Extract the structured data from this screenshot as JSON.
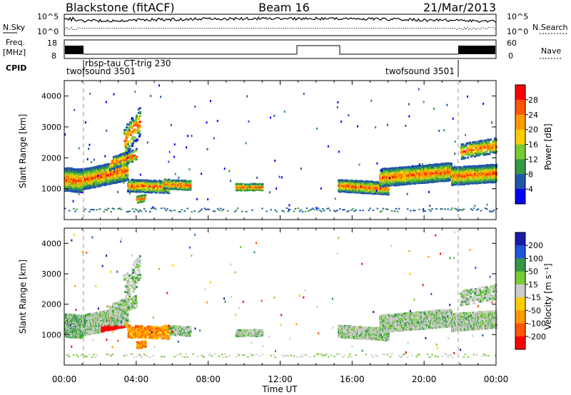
{
  "header": {
    "station": "Blackstone (fitACF)",
    "beam": "Beam 16",
    "date": "21/Mar/2013"
  },
  "status_panels": {
    "nsky_label": "N.Sky",
    "nsky_ticks": [
      "10^5",
      "10^0"
    ],
    "nsearch_label": "N.Search",
    "nsearch_ticks": [
      "10^5",
      "10^0"
    ],
    "freq_label_1": "Freq.",
    "freq_label_2": "[MHz]",
    "freq_ticks": [
      "18",
      "8"
    ],
    "nave_label": "Nave",
    "nave_ticks": [
      "60",
      "0"
    ],
    "cpid_label": "CPID",
    "cpid_entries": [
      "twofsound 3501",
      "rbsp-tau CT-trig 230",
      "twofsound 3501"
    ]
  },
  "chart_data": [
    {
      "type": "heatmap",
      "name": "power-panel",
      "xlabel": "",
      "ylabel": "Slant Range [km]",
      "ylim": [
        0,
        4500
      ],
      "xlim": [
        0,
        24
      ],
      "yticks": [
        "1000",
        "2000",
        "3000",
        "4000"
      ],
      "colorbar_label": "Power [dB]",
      "colorbar_ticks": [
        "28",
        "24",
        "20",
        "16",
        "12",
        "8",
        "4"
      ],
      "colorbar_colors": [
        "#ff0000",
        "#ff5500",
        "#ff9900",
        "#ffcc00",
        "#77cc33",
        "#339944",
        "#2255aa",
        "#0000ff"
      ]
    },
    {
      "type": "heatmap",
      "name": "velocity-panel",
      "xlabel": "Time UT",
      "ylabel": "Slant Range [km]",
      "ylim": [
        0,
        4500
      ],
      "xlim": [
        0,
        24
      ],
      "xticks": [
        "00:00",
        "04:00",
        "08:00",
        "12:00",
        "16:00",
        "20:00",
        "00:00"
      ],
      "yticks": [
        "1000",
        "2000",
        "3000",
        "4000"
      ],
      "colorbar_label": "Velocity [m s⁻¹]",
      "colorbar_ticks": [
        "200",
        "100",
        "50",
        "15",
        "-15",
        "-50",
        "-100",
        "-200"
      ],
      "colorbar_colors": [
        "#1a1aaa",
        "#2255dd",
        "#339944",
        "#77cc33",
        "#cccccc",
        "#ffcc00",
        "#ff9900",
        "#ff5500",
        "#ff0000"
      ]
    }
  ]
}
